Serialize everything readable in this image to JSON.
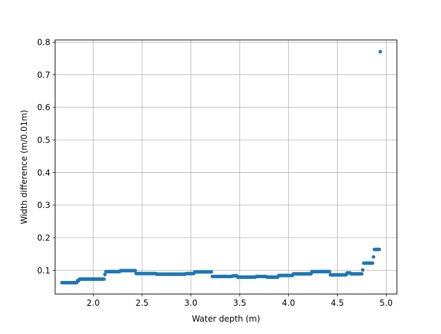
{
  "chart_data": {
    "type": "scatter",
    "title": "",
    "xlabel": "Water depth (m)",
    "ylabel": "Width difference (m/0.01m)",
    "xlim": [
      1.61,
      5.11
    ],
    "ylim": [
      0.027,
      0.807
    ],
    "xticks": [
      2.0,
      2.5,
      3.0,
      3.5,
      4.0,
      4.5,
      5.0
    ],
    "xtick_labels": [
      "2.0",
      "2.5",
      "3.0",
      "3.5",
      "4.0",
      "4.5",
      "5.0"
    ],
    "yticks": [
      0.1,
      0.2,
      0.3,
      0.4,
      0.5,
      0.6,
      0.7,
      0.8
    ],
    "ytick_labels": [
      "0.1",
      "0.2",
      "0.3",
      "0.4",
      "0.5",
      "0.6",
      "0.7",
      "0.8"
    ],
    "grid": true,
    "marker_color": "#1f77b4",
    "series": [
      {
        "segments": [
          {
            "x_start": 1.68,
            "x_end": 1.83,
            "step": 0.01,
            "y": 0.062
          },
          {
            "x_start": 1.84,
            "x_end": 1.85,
            "step": 0.01,
            "y": 0.068
          },
          {
            "x_start": 1.86,
            "x_end": 2.11,
            "step": 0.01,
            "y": 0.073
          },
          {
            "x_start": 2.12,
            "x_end": 2.12,
            "step": 0.01,
            "y": 0.087
          },
          {
            "x_start": 2.13,
            "x_end": 2.27,
            "step": 0.01,
            "y": 0.096
          },
          {
            "x_start": 2.28,
            "x_end": 2.43,
            "step": 0.01,
            "y": 0.099
          },
          {
            "x_start": 2.44,
            "x_end": 2.64,
            "step": 0.01,
            "y": 0.09
          },
          {
            "x_start": 2.65,
            "x_end": 2.94,
            "step": 0.01,
            "y": 0.088
          },
          {
            "x_start": 2.95,
            "x_end": 3.03,
            "step": 0.01,
            "y": 0.09
          },
          {
            "x_start": 3.04,
            "x_end": 3.21,
            "step": 0.01,
            "y": 0.095
          },
          {
            "x_start": 3.22,
            "x_end": 3.42,
            "step": 0.01,
            "y": 0.081
          },
          {
            "x_start": 3.43,
            "x_end": 3.47,
            "step": 0.01,
            "y": 0.083
          },
          {
            "x_start": 3.48,
            "x_end": 3.66,
            "step": 0.01,
            "y": 0.079
          },
          {
            "x_start": 3.67,
            "x_end": 3.77,
            "step": 0.01,
            "y": 0.081
          },
          {
            "x_start": 3.78,
            "x_end": 3.89,
            "step": 0.01,
            "y": 0.079
          },
          {
            "x_start": 3.9,
            "x_end": 4.04,
            "step": 0.01,
            "y": 0.084
          },
          {
            "x_start": 4.05,
            "x_end": 4.23,
            "step": 0.01,
            "y": 0.089
          },
          {
            "x_start": 4.24,
            "x_end": 4.42,
            "step": 0.01,
            "y": 0.096
          },
          {
            "x_start": 4.43,
            "x_end": 4.59,
            "step": 0.01,
            "y": 0.086
          },
          {
            "x_start": 4.6,
            "x_end": 4.63,
            "step": 0.01,
            "y": 0.092
          },
          {
            "x_start": 4.64,
            "x_end": 4.75,
            "step": 0.01,
            "y": 0.089
          },
          {
            "x_start": 4.76,
            "x_end": 4.76,
            "step": 0.01,
            "y": 0.101
          },
          {
            "x_start": 4.77,
            "x_end": 4.86,
            "step": 0.01,
            "y": 0.122
          },
          {
            "x_start": 4.87,
            "x_end": 4.87,
            "step": 0.01,
            "y": 0.141
          },
          {
            "x_start": 4.88,
            "x_end": 4.93,
            "step": 0.01,
            "y": 0.164
          }
        ],
        "points": [
          {
            "x": 4.94,
            "y": 0.771
          }
        ]
      }
    ]
  }
}
